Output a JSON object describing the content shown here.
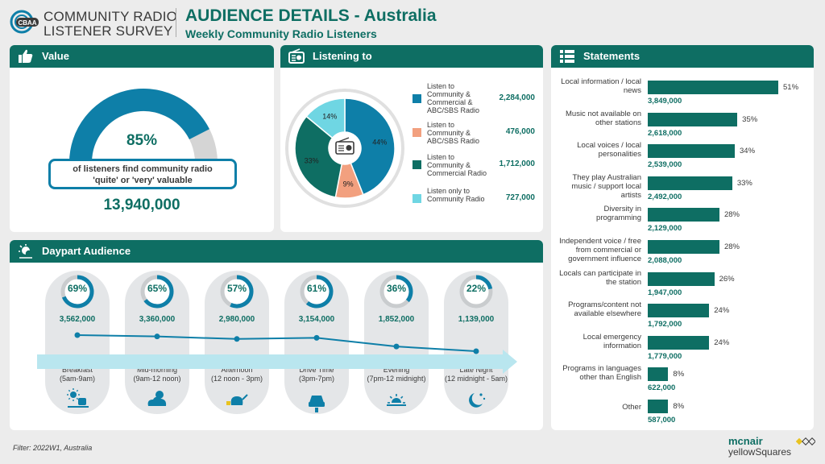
{
  "logo": {
    "badge": "CBAA",
    "line1": "COMMUNITY RADIO",
    "line2": "LISTENER SURVEY"
  },
  "header": {
    "title": "AUDIENCE DETAILS - Australia",
    "subtitle": "Weekly Community Radio Listeners"
  },
  "value": {
    "heading": "Value",
    "percent_label": "85%",
    "percent": 85,
    "caption_line1": "of listeners find community radio",
    "caption_line2": "'quite' or 'very' valuable",
    "total": "13,940,000"
  },
  "listening": {
    "heading": "Listening to",
    "slices": [
      {
        "label": "Listen to Community & Commercial & ABC/SBS Radio",
        "value": "2,284,000",
        "pct": 44,
        "pct_label": "44%",
        "color": "#0e7fa8"
      },
      {
        "label": "Listen to Community & ABC/SBS Radio",
        "value": "476,000",
        "pct": 9,
        "pct_label": "9%",
        "color": "#f2a07f"
      },
      {
        "label": "Listen to Community & Commercial Radio",
        "value": "1,712,000",
        "pct": 33,
        "pct_label": "33%",
        "color": "#0e6e63"
      },
      {
        "label": "Listen only to Community Radio",
        "value": "727,000",
        "pct": 14,
        "pct_label": "14%",
        "color": "#6fd6e3"
      }
    ]
  },
  "statements": {
    "heading": "Statements",
    "items": [
      {
        "label": "Local information / local news",
        "pct": 51,
        "pct_label": "51%",
        "value": "3,849,000"
      },
      {
        "label": "Music not available on other stations",
        "pct": 35,
        "pct_label": "35%",
        "value": "2,618,000"
      },
      {
        "label": "Local voices / local personalities",
        "pct": 34,
        "pct_label": "34%",
        "value": "2,539,000"
      },
      {
        "label": "They play Australian music / support local artists",
        "pct": 33,
        "pct_label": "33%",
        "value": "2,492,000"
      },
      {
        "label": "Diversity in programming",
        "pct": 28,
        "pct_label": "28%",
        "value": "2,129,000"
      },
      {
        "label": "Independent voice / free from commercial or government influence",
        "pct": 28,
        "pct_label": "28%",
        "value": "2,088,000"
      },
      {
        "label": "Locals can participate in the station",
        "pct": 26,
        "pct_label": "26%",
        "value": "1,947,000"
      },
      {
        "label": "Programs/content not available elsewhere",
        "pct": 24,
        "pct_label": "24%",
        "value": "1,792,000"
      },
      {
        "label": "Local emergency information",
        "pct": 24,
        "pct_label": "24%",
        "value": "1,779,000"
      },
      {
        "label": "Programs in languages other than English",
        "pct": 8,
        "pct_label": "8%",
        "value": "622,000"
      },
      {
        "label": "Other",
        "pct": 8,
        "pct_label": "8%",
        "value": "587,000"
      }
    ]
  },
  "daypart": {
    "heading": "Daypart Audience",
    "items": [
      {
        "name": "Breakfast",
        "time": "(5am-9am)",
        "pct": 69,
        "pct_label": "69%",
        "value": "3,562,000",
        "icon": "sun-coffee-icon"
      },
      {
        "name": "Mid-morning",
        "time": "(9am-12 noon)",
        "pct": 65,
        "pct_label": "65%",
        "value": "3,360,000",
        "icon": "sun-cloud-icon"
      },
      {
        "name": "Afternoon",
        "time": "(12 noon - 3pm)",
        "pct": 57,
        "pct_label": "57%",
        "value": "2,980,000",
        "icon": "teapot-icon"
      },
      {
        "name": "Drive Time",
        "time": "(3pm-7pm)",
        "pct": 61,
        "pct_label": "61%",
        "value": "3,154,000",
        "icon": "car-icon"
      },
      {
        "name": "Evening",
        "time": "(7pm-12 midnight)",
        "pct": 36,
        "pct_label": "36%",
        "value": "1,852,000",
        "icon": "sunset-icon"
      },
      {
        "name": "Late Night",
        "time": "(12 midnight - 5am)",
        "pct": 22,
        "pct_label": "22%",
        "value": "1,139,000",
        "icon": "moon-stars-icon"
      }
    ]
  },
  "footer": {
    "filter": "Filter: 2022W1, Australia",
    "brand1": "mcnair",
    "brand2": "yellowSquares"
  },
  "chart_data": [
    {
      "type": "pie",
      "categories": [
        "Listen to Community & Commercial & ABC/SBS Radio",
        "Listen to Community & ABC/SBS Radio",
        "Listen to Community & Commercial Radio",
        "Listen only to Community Radio"
      ],
      "values": [
        44,
        9,
        33,
        14
      ],
      "title": "Listening to"
    },
    {
      "type": "bar",
      "categories": [
        "Local information / local news",
        "Music not available on other stations",
        "Local voices / local personalities",
        "They play Australian music / support local artists",
        "Diversity in programming",
        "Independent voice / free from commercial or government influence",
        "Locals can participate in the station",
        "Programs/content not available elsewhere",
        "Local emergency information",
        "Programs in languages other than English",
        "Other"
      ],
      "values": [
        51,
        35,
        34,
        33,
        28,
        28,
        26,
        24,
        24,
        8,
        8
      ],
      "title": "Statements"
    },
    {
      "type": "line",
      "categories": [
        "Breakfast",
        "Mid-morning",
        "Afternoon",
        "Drive Time",
        "Evening",
        "Late Night"
      ],
      "values": [
        3562000,
        3360000,
        2980000,
        3154000,
        1852000,
        1139000
      ],
      "title": "Daypart Audience"
    }
  ]
}
